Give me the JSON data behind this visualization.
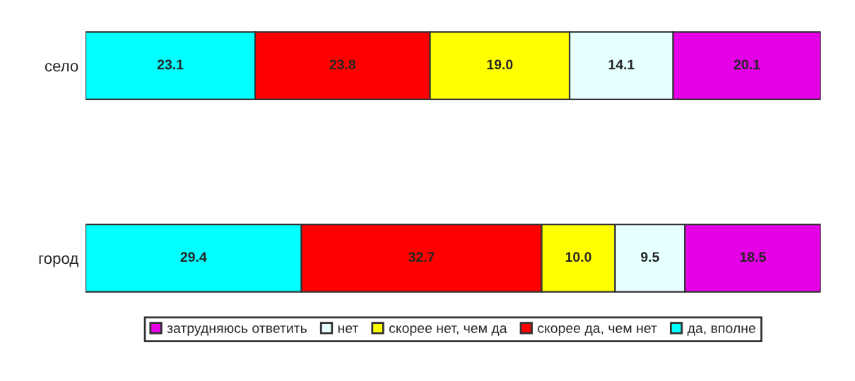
{
  "chart_data": {
    "type": "bar",
    "orientation": "horizontal",
    "stacked": true,
    "categories": [
      "село",
      "город"
    ],
    "series": [
      {
        "name": "да, вполне",
        "color": "#00ffff",
        "values": [
          23.1,
          29.4
        ],
        "value_labels": [
          "23.1",
          "29.4"
        ]
      },
      {
        "name": "скорее да, чем нет",
        "color": "#ff0000",
        "values": [
          23.8,
          32.7
        ],
        "value_labels": [
          "23.8",
          "32.7"
        ]
      },
      {
        "name": "скорее нет, чем да",
        "color": "#ffff00",
        "values": [
          19.0,
          10.0
        ],
        "value_labels": [
          "19.0",
          "10.0"
        ]
      },
      {
        "name": "нет",
        "color": "#e6ffff",
        "values": [
          14.1,
          9.5
        ],
        "value_labels": [
          "14.1",
          "9.5"
        ]
      },
      {
        "name": "затрудняюсь ответить",
        "color": "#e600e6",
        "values": [
          20.1,
          18.5
        ],
        "value_labels": [
          "20.1",
          "18.5"
        ]
      }
    ],
    "tick_labels": "y",
    "legend": "bottom"
  }
}
